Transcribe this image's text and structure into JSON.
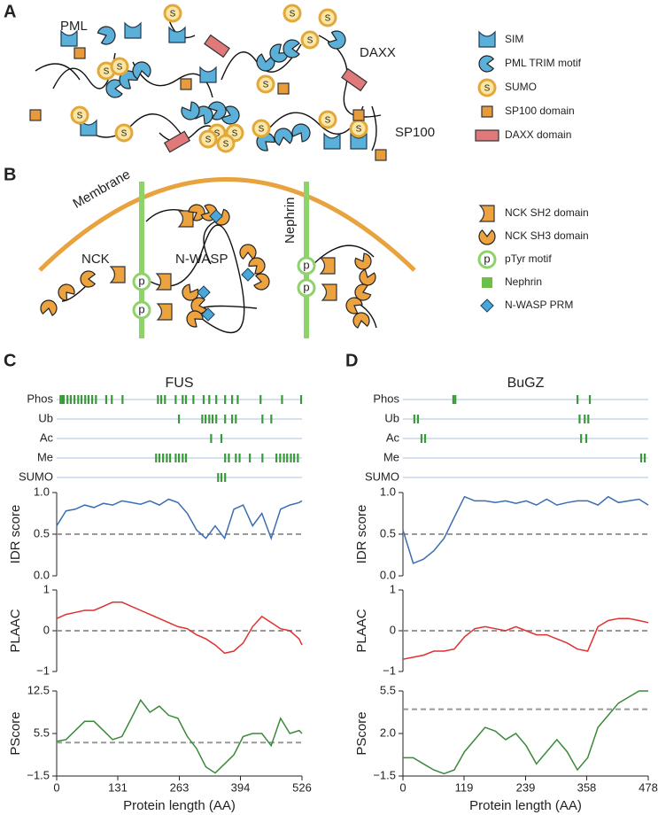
{
  "panel_a": {
    "label": "A",
    "labels": [
      "PML",
      "DAXX",
      "SP100"
    ],
    "sumo_symbol": "S",
    "legend": [
      "SIM",
      "PML TRIM motif",
      "SUMO",
      "SP100 domain",
      "DAXX domain"
    ]
  },
  "panel_b": {
    "label": "B",
    "labels": [
      "Membrane",
      "NCK",
      "N-WASP",
      "Nephrin"
    ],
    "ptyr_symbol": "p",
    "legend": [
      "NCK SH2 domain",
      "NCK SH3 domain",
      "pTyr motif",
      "Nephrin",
      "N-WASP PRM"
    ]
  },
  "chart_data": [
    {
      "type": "tracks",
      "panel": "C",
      "title": "FUS",
      "xlim": [
        0,
        526
      ],
      "series": [
        {
          "name": "Phos",
          "color": "#3a9a3a",
          "positions": [
            8,
            12,
            15,
            23,
            30,
            38,
            46,
            53,
            61,
            68,
            76,
            84,
            106,
            118,
            141,
            217,
            224,
            232,
            255,
            270,
            277,
            293,
            315,
            327,
            342,
            361,
            376,
            388,
            437,
            483,
            524
          ]
        },
        {
          "name": "Ub",
          "color": "#3a9a3a",
          "positions": [
            262,
            312,
            319,
            327,
            334,
            342,
            361,
            376,
            384,
            441,
            460
          ]
        },
        {
          "name": "Ac",
          "color": "#3a9a3a",
          "positions": [
            331,
            353
          ]
        },
        {
          "name": "Me",
          "color": "#3a9a3a",
          "positions": [
            213,
            220,
            228,
            236,
            243,
            255,
            262,
            270,
            277,
            361,
            369,
            384,
            392,
            414,
            441,
            471,
            479,
            487,
            494,
            502,
            509,
            517
          ]
        },
        {
          "name": "SUMO",
          "color": "#3a9a3a",
          "positions": [
            346,
            353,
            361
          ]
        }
      ]
    },
    {
      "type": "line",
      "ylabel": "IDR score",
      "color": "#3a6db3",
      "xlim": [
        0,
        526
      ],
      "ylim": [
        0,
        1
      ],
      "yticks": [
        {
          "value": 0,
          "label": "0.0"
        },
        0.5,
        {
          "value": 1,
          "label": "1.0"
        }
      ],
      "threshold": 0.5,
      "x": [
        0,
        20,
        40,
        60,
        80,
        100,
        120,
        140,
        160,
        180,
        200,
        220,
        240,
        260,
        280,
        300,
        320,
        340,
        360,
        380,
        400,
        420,
        440,
        460,
        480,
        500,
        520,
        526
      ],
      "values": [
        0.6,
        0.78,
        0.8,
        0.85,
        0.82,
        0.87,
        0.85,
        0.9,
        0.88,
        0.86,
        0.9,
        0.85,
        0.92,
        0.88,
        0.75,
        0.55,
        0.45,
        0.6,
        0.45,
        0.8,
        0.85,
        0.6,
        0.75,
        0.45,
        0.8,
        0.85,
        0.88,
        0.9
      ]
    },
    {
      "type": "line",
      "ylabel": "PLAAC",
      "color": "#e03030",
      "xlim": [
        0,
        526
      ],
      "ylim": [
        -1,
        1
      ],
      "yticks": [
        {
          "value": -1,
          "label": "−1"
        },
        0,
        1
      ],
      "threshold": 0,
      "x": [
        0,
        20,
        40,
        60,
        80,
        100,
        120,
        140,
        160,
        180,
        200,
        220,
        240,
        260,
        280,
        300,
        320,
        340,
        360,
        380,
        400,
        420,
        440,
        460,
        480,
        500,
        520,
        526
      ],
      "values": [
        0.3,
        0.4,
        0.45,
        0.5,
        0.5,
        0.6,
        0.7,
        0.7,
        0.6,
        0.5,
        0.4,
        0.3,
        0.2,
        0.1,
        0.05,
        -0.1,
        -0.2,
        -0.35,
        -0.55,
        -0.5,
        -0.3,
        0.1,
        0.35,
        0.2,
        0.05,
        0.0,
        -0.2,
        -0.35
      ]
    },
    {
      "type": "line",
      "ylabel": "PScore",
      "xlabel": "Protein length (AA)",
      "color": "#3a8a3a",
      "xlim": [
        0,
        526
      ],
      "xticks": [
        0,
        131,
        263,
        394,
        526
      ],
      "ylim": [
        -1.5,
        12.5
      ],
      "yticks": [
        {
          "value": -1.5,
          "label": "−1.5"
        },
        5.5,
        12.5
      ],
      "threshold": 4,
      "x": [
        0,
        20,
        40,
        60,
        80,
        100,
        120,
        140,
        160,
        180,
        200,
        220,
        240,
        260,
        280,
        300,
        320,
        340,
        360,
        380,
        400,
        420,
        440,
        460,
        480,
        500,
        520,
        526
      ],
      "values": [
        4.2,
        4.5,
        6,
        7.5,
        7.5,
        6,
        4.5,
        5,
        8,
        11,
        9,
        10,
        8.5,
        8,
        5,
        3,
        0,
        -1,
        0.5,
        2,
        5,
        5.5,
        5.5,
        3.5,
        8,
        5.5,
        6,
        5.5
      ]
    },
    {
      "type": "tracks",
      "panel": "D",
      "title": "BuGZ",
      "xlim": [
        0,
        478
      ],
      "series": [
        {
          "name": "Phos",
          "color": "#3a9a3a",
          "positions": [
            98,
            102,
            340,
            364
          ]
        },
        {
          "name": "Ub",
          "color": "#3a9a3a",
          "positions": [
            22,
            29,
            344,
            354,
            361
          ]
        },
        {
          "name": "Ac",
          "color": "#3a9a3a",
          "positions": [
            36,
            43,
            347,
            357
          ]
        },
        {
          "name": "Me",
          "color": "#3a9a3a",
          "positions": [
            464,
            471
          ]
        },
        {
          "name": "SUMO",
          "color": "#3a9a3a",
          "positions": []
        }
      ]
    },
    {
      "type": "line",
      "ylabel": "IDR score",
      "color": "#3a6db3",
      "xlim": [
        0,
        478
      ],
      "ylim": [
        0,
        1
      ],
      "yticks": [
        {
          "value": 0,
          "label": "0.0"
        },
        0.5,
        {
          "value": 1,
          "label": "1.0"
        }
      ],
      "threshold": 0.5,
      "x": [
        0,
        20,
        40,
        60,
        80,
        100,
        120,
        140,
        160,
        180,
        200,
        220,
        240,
        260,
        280,
        300,
        320,
        340,
        360,
        380,
        400,
        420,
        440,
        460,
        478
      ],
      "values": [
        0.55,
        0.15,
        0.2,
        0.3,
        0.45,
        0.7,
        0.95,
        0.9,
        0.9,
        0.88,
        0.9,
        0.87,
        0.9,
        0.85,
        0.92,
        0.85,
        0.88,
        0.9,
        0.9,
        0.85,
        0.95,
        0.88,
        0.9,
        0.92,
        0.85
      ]
    },
    {
      "type": "line",
      "ylabel": "PLAAC",
      "color": "#e03030",
      "xlim": [
        0,
        478
      ],
      "ylim": [
        -1,
        1
      ],
      "yticks": [
        {
          "value": -1,
          "label": "−1"
        },
        0,
        1
      ],
      "threshold": 0,
      "x": [
        0,
        20,
        40,
        60,
        80,
        100,
        120,
        140,
        160,
        180,
        200,
        220,
        240,
        260,
        280,
        300,
        320,
        340,
        360,
        380,
        400,
        420,
        440,
        460,
        478
      ],
      "values": [
        -0.7,
        -0.65,
        -0.6,
        -0.5,
        -0.5,
        -0.45,
        -0.15,
        0.05,
        0.1,
        0.05,
        0.0,
        0.1,
        0.0,
        -0.1,
        -0.1,
        -0.2,
        -0.3,
        -0.45,
        -0.5,
        0.1,
        0.25,
        0.3,
        0.3,
        0.25,
        0.2
      ]
    },
    {
      "type": "line",
      "ylabel": "PScore",
      "xlabel": "Protein length (AA)",
      "color": "#3a8a3a",
      "xlim": [
        0,
        478
      ],
      "xticks": [
        0,
        119,
        239,
        358,
        478
      ],
      "ylim": [
        -1.5,
        5.5
      ],
      "yticks": [
        {
          "value": -1.5,
          "label": "−1.5"
        },
        {
          "value": 2,
          "label": "2.0"
        },
        5.5
      ],
      "threshold": 4,
      "x": [
        0,
        20,
        40,
        60,
        80,
        100,
        120,
        140,
        160,
        180,
        200,
        220,
        240,
        260,
        280,
        300,
        320,
        340,
        360,
        380,
        400,
        420,
        440,
        460,
        478
      ],
      "values": [
        0,
        0,
        -0.5,
        -1,
        -1.3,
        -1,
        0.5,
        1.5,
        2.5,
        2.2,
        1.5,
        2,
        1,
        -0.5,
        0.5,
        1.5,
        0.5,
        -1,
        0,
        2.5,
        3.5,
        4.5,
        5,
        5.5,
        5.5
      ]
    }
  ]
}
